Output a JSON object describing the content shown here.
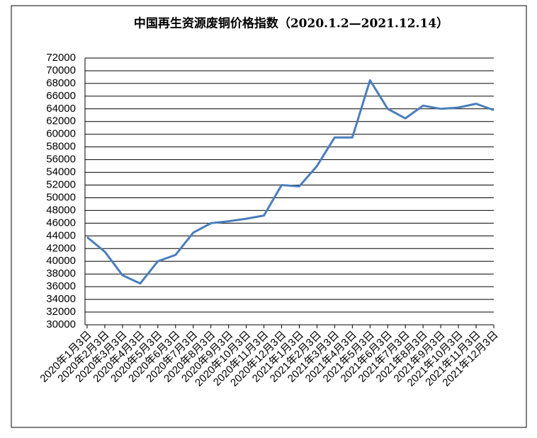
{
  "chart_data": {
    "type": "line",
    "title": "中国再生资源废铜价格指数（2020.1.2—2021.12.14）",
    "categories": [
      "2020年1月3日",
      "2020年2月3日",
      "2020年3月3日",
      "2020年4月3日",
      "2020年5月3日",
      "2020年6月3日",
      "2020年7月3日",
      "2020年8月3日",
      "2020年9月3日",
      "2020年10月3日",
      "2020年11月3日",
      "2020年12月3日",
      "2021年1月3日",
      "2021年2月3日",
      "2021年3月3日",
      "2021年4月3日",
      "2021年5月3日",
      "2021年6月3日",
      "2021年7月3日",
      "2021年8月3日",
      "2021年9月3日",
      "2021年10月3日",
      "2021年11月3日",
      "2021年12月3日"
    ],
    "series": [
      {
        "color": "#4a7ebb",
        "values": [
          43800,
          41500,
          37800,
          36500,
          40000,
          41000,
          44500,
          46000,
          46300,
          46700,
          47200,
          52000,
          51800,
          55000,
          59500,
          59500,
          68500,
          64000,
          62500,
          64500,
          64000,
          64200,
          64800,
          63800
        ]
      }
    ],
    "ylim": [
      30000,
      72000
    ],
    "yticks": [
      30000,
      32000,
      34000,
      36000,
      38000,
      40000,
      42000,
      44000,
      46000,
      48000,
      50000,
      52000,
      54000,
      56000,
      58000,
      60000,
      62000,
      64000,
      66000,
      68000,
      70000,
      72000
    ],
    "grid": true
  }
}
